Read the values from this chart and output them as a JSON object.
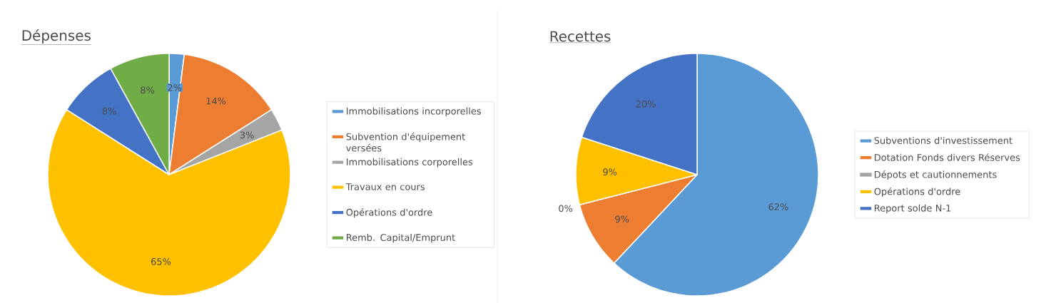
{
  "chart_data": [
    {
      "type": "pie",
      "title": "Dépenses",
      "legend": "right",
      "categories": [
        "Immobilisations incorporelles",
        "Subvention d'équipement versées",
        "Immobilisations corporelles",
        "Travaux en cours",
        "Opérations d'ordre",
        "Remb. Capital/Emprunt"
      ],
      "values": [
        2,
        14,
        3,
        65,
        8,
        8
      ],
      "value_labels": [
        "2%",
        "14%",
        "3%",
        "65%",
        "8%",
        "8%"
      ],
      "colors": [
        "#5b9bd5",
        "#ed7d31",
        "#a5a5a5",
        "#ffc000",
        "#4472c4",
        "#70ad47"
      ]
    },
    {
      "type": "pie",
      "title": "Recettes",
      "legend": "right",
      "categories": [
        "Subventions d'investissement",
        "Dotation Fonds divers Réserves",
        "Dépots et cautionnements",
        "Opérations d'ordre",
        "Report solde N-1"
      ],
      "values": [
        62,
        9,
        0,
        9,
        20
      ],
      "value_labels": [
        "62%",
        "9%",
        "0%",
        "9%",
        "20%"
      ],
      "colors": [
        "#5b9bd5",
        "#ed7d31",
        "#a5a5a5",
        "#ffc000",
        "#4472c4"
      ]
    }
  ]
}
